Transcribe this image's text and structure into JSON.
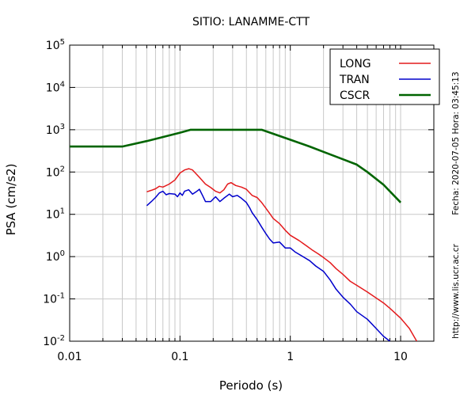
{
  "chart_data": {
    "type": "line",
    "title": "SITIO: LANAMME-CTT",
    "xlabel": "Periodo (s)",
    "ylabel": "PSA (cm/s2)",
    "x_scale": "log",
    "y_scale": "log",
    "xlim": [
      0.01,
      20
    ],
    "ylim": [
      0.01,
      100000
    ],
    "x_ticks": [
      {
        "value": 0.01,
        "label": "0.01"
      },
      {
        "value": 0.1,
        "label": "0.1"
      },
      {
        "value": 1,
        "label": "1"
      },
      {
        "value": 10,
        "label": "10"
      }
    ],
    "y_ticks": [
      {
        "value": 100000,
        "base": "10",
        "exp": "5"
      },
      {
        "value": 10000,
        "base": "10",
        "exp": "4"
      },
      {
        "value": 1000,
        "base": "10",
        "exp": "3"
      },
      {
        "value": 100,
        "base": "10",
        "exp": "2"
      },
      {
        "value": 10,
        "base": "10",
        "exp": "1"
      },
      {
        "value": 1,
        "base": "10",
        "exp": "0"
      },
      {
        "value": 0.1,
        "base": "10",
        "exp": "-1"
      },
      {
        "value": 0.01,
        "base": "10",
        "exp": "-2"
      }
    ],
    "grid": true,
    "legend_position": "top-right",
    "series": [
      {
        "name": "LONG",
        "color": "#e41a1c",
        "points": [
          [
            0.05,
            34
          ],
          [
            0.055,
            37
          ],
          [
            0.06,
            40
          ],
          [
            0.065,
            46
          ],
          [
            0.07,
            44
          ],
          [
            0.08,
            52
          ],
          [
            0.09,
            65
          ],
          [
            0.1,
            95
          ],
          [
            0.11,
            112
          ],
          [
            0.12,
            120
          ],
          [
            0.13,
            112
          ],
          [
            0.15,
            75
          ],
          [
            0.17,
            52
          ],
          [
            0.19,
            43
          ],
          [
            0.21,
            35
          ],
          [
            0.23,
            32
          ],
          [
            0.25,
            38
          ],
          [
            0.27,
            52
          ],
          [
            0.29,
            56
          ],
          [
            0.32,
            48
          ],
          [
            0.36,
            44
          ],
          [
            0.4,
            39
          ],
          [
            0.45,
            28
          ],
          [
            0.5,
            25
          ],
          [
            0.55,
            19
          ],
          [
            0.6,
            14
          ],
          [
            0.65,
            10.5
          ],
          [
            0.7,
            8
          ],
          [
            0.8,
            6
          ],
          [
            0.9,
            4.2
          ],
          [
            1.0,
            3.2
          ],
          [
            1.2,
            2.4
          ],
          [
            1.4,
            1.8
          ],
          [
            1.6,
            1.4
          ],
          [
            1.8,
            1.15
          ],
          [
            2.0,
            0.95
          ],
          [
            2.3,
            0.72
          ],
          [
            2.6,
            0.52
          ],
          [
            3.0,
            0.38
          ],
          [
            3.5,
            0.26
          ],
          [
            4.0,
            0.21
          ],
          [
            5.0,
            0.145
          ],
          [
            6.0,
            0.105
          ],
          [
            7.0,
            0.08
          ],
          [
            8.0,
            0.06
          ],
          [
            10.0,
            0.035
          ],
          [
            12.0,
            0.02
          ],
          [
            14.0,
            0.01
          ]
        ]
      },
      {
        "name": "TRAN",
        "color": "#0000cc",
        "points": [
          [
            0.05,
            16
          ],
          [
            0.055,
            20
          ],
          [
            0.06,
            25
          ],
          [
            0.065,
            32
          ],
          [
            0.07,
            35
          ],
          [
            0.075,
            29
          ],
          [
            0.08,
            31
          ],
          [
            0.09,
            30
          ],
          [
            0.095,
            26
          ],
          [
            0.1,
            32
          ],
          [
            0.105,
            28
          ],
          [
            0.11,
            35
          ],
          [
            0.12,
            38
          ],
          [
            0.13,
            30
          ],
          [
            0.14,
            34
          ],
          [
            0.15,
            39
          ],
          [
            0.16,
            28
          ],
          [
            0.17,
            20
          ],
          [
            0.19,
            20
          ],
          [
            0.21,
            26
          ],
          [
            0.23,
            20
          ],
          [
            0.25,
            24
          ],
          [
            0.28,
            30
          ],
          [
            0.3,
            26
          ],
          [
            0.33,
            28
          ],
          [
            0.36,
            24
          ],
          [
            0.4,
            19
          ],
          [
            0.43,
            14
          ],
          [
            0.45,
            11
          ],
          [
            0.5,
            7.5
          ],
          [
            0.55,
            5
          ],
          [
            0.6,
            3.5
          ],
          [
            0.65,
            2.6
          ],
          [
            0.7,
            2.1
          ],
          [
            0.8,
            2.2
          ],
          [
            0.9,
            1.6
          ],
          [
            1.0,
            1.6
          ],
          [
            1.1,
            1.3
          ],
          [
            1.3,
            1.0
          ],
          [
            1.5,
            0.8
          ],
          [
            1.7,
            0.6
          ],
          [
            2.0,
            0.45
          ],
          [
            2.3,
            0.28
          ],
          [
            2.6,
            0.17
          ],
          [
            3.0,
            0.11
          ],
          [
            3.5,
            0.075
          ],
          [
            4.0,
            0.05
          ],
          [
            5.0,
            0.033
          ],
          [
            6.0,
            0.02
          ],
          [
            7.0,
            0.013
          ],
          [
            8.0,
            0.01
          ]
        ]
      },
      {
        "name": "CSCR",
        "color": "#006400",
        "points": [
          [
            0.01,
            400
          ],
          [
            0.03,
            400
          ],
          [
            0.05,
            540
          ],
          [
            0.1,
            850
          ],
          [
            0.125,
            1000
          ],
          [
            0.55,
            1000
          ],
          [
            1.0,
            580
          ],
          [
            1.5,
            400
          ],
          [
            2.0,
            300
          ],
          [
            3.0,
            200
          ],
          [
            4.0,
            150
          ],
          [
            5.0,
            100
          ],
          [
            7.0,
            50
          ],
          [
            10.0,
            19
          ]
        ]
      }
    ]
  },
  "side_annotations": {
    "date_time": "Fecha: 2020-07-05 Hora: 03:45:13",
    "url": "http://www.lis.ucr.ac.cr"
  }
}
